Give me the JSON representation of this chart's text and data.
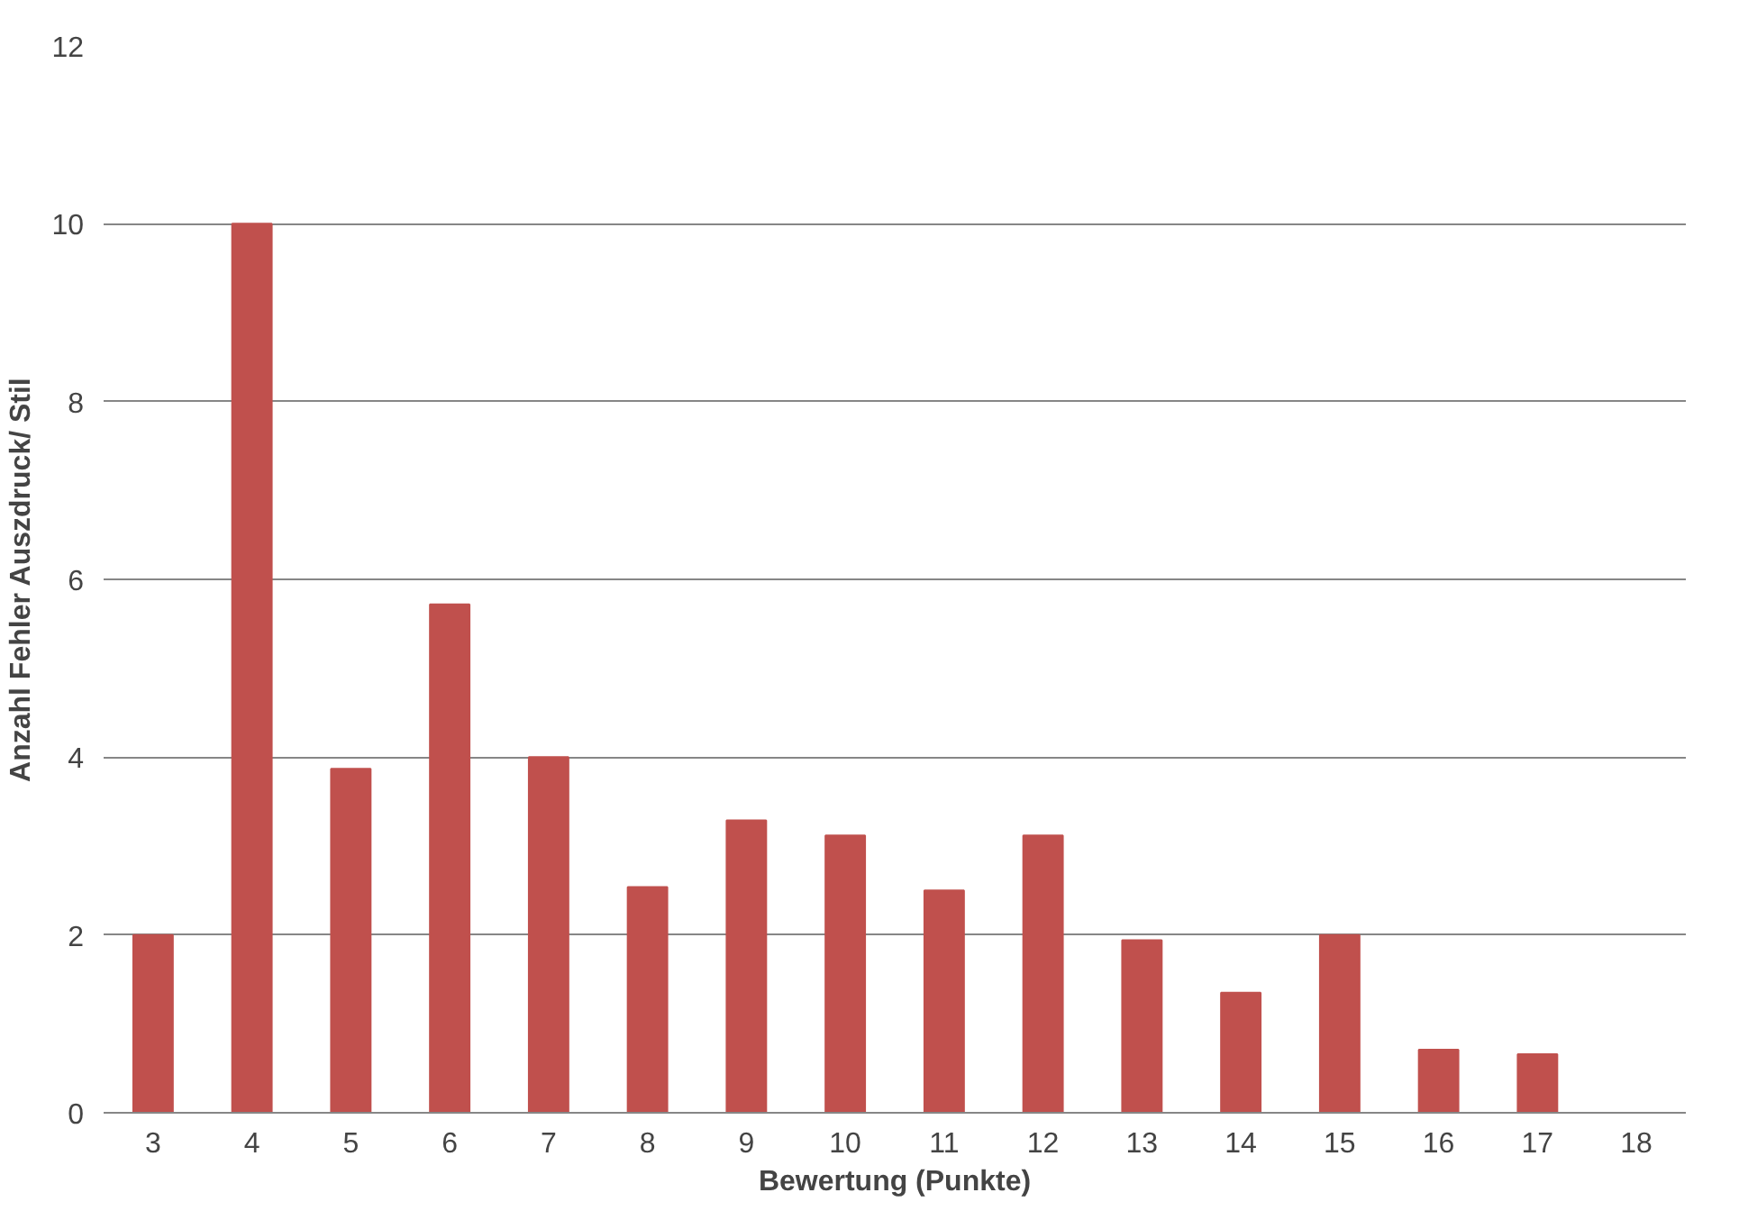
{
  "chart_data": {
    "type": "bar",
    "xlabel": "Bewertung (Punkte)",
    "ylabel": "Anzahl Fehler Auszdruck/ Stil",
    "categories": [
      "3",
      "4",
      "5",
      "6",
      "7",
      "8",
      "9",
      "10",
      "11",
      "12",
      "13",
      "14",
      "15",
      "16",
      "17",
      "18"
    ],
    "values": [
      2,
      10,
      3.87,
      5.72,
      4,
      2.54,
      3.29,
      3.12,
      2.5,
      3.12,
      1.94,
      1.35,
      2,
      0.71,
      0.66,
      0
    ],
    "color": "#c0504d",
    "ylim": [
      0,
      12
    ],
    "yticks": [
      0,
      2,
      4,
      6,
      8,
      10,
      12
    ],
    "grid": "y"
  }
}
